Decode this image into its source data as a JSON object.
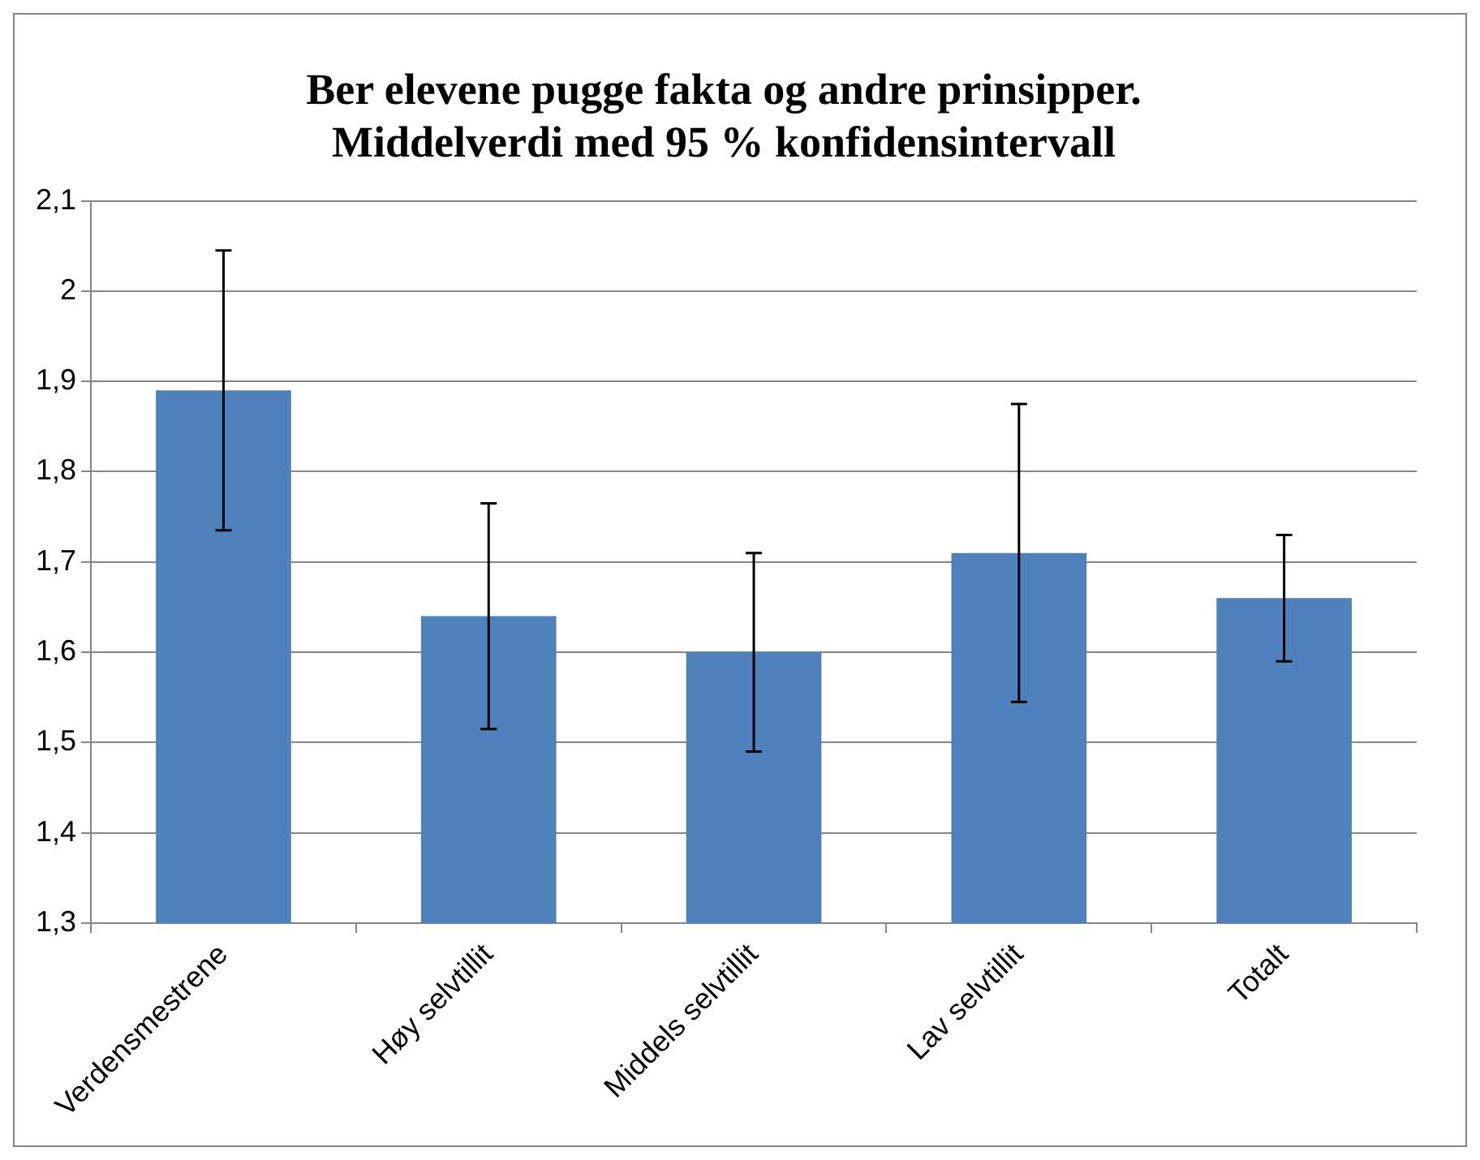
{
  "chart_data": {
    "type": "bar",
    "title": "Ber elevene pugge fakta og andre prinsipper.\nMiddelverdi med 95 % konfidensintervall",
    "categories": [
      "Verdensmestrene",
      "Høy selvtillit",
      "Middels selvtillit",
      "Lav selvtillit",
      "Totalt"
    ],
    "values": [
      1.89,
      1.64,
      1.6,
      1.71,
      1.66
    ],
    "errors": [
      0.155,
      0.125,
      0.11,
      0.165,
      0.07
    ],
    "color": "#4f81bd",
    "ylim": [
      1.3,
      2.1
    ],
    "yticks": [
      {
        "value": 1.3,
        "label": "1,3"
      },
      {
        "value": 1.4,
        "label": "1,4"
      },
      {
        "value": 1.5,
        "label": "1,5"
      },
      {
        "value": 1.6,
        "label": "1,6"
      },
      {
        "value": 1.7,
        "label": "1,7"
      },
      {
        "value": 1.8,
        "label": "1,8"
      },
      {
        "value": 1.9,
        "label": "1,9"
      },
      {
        "value": 2,
        "label": "2"
      },
      {
        "value": 2.1,
        "label": "2,1"
      }
    ],
    "grid": "y",
    "legend": false
  }
}
